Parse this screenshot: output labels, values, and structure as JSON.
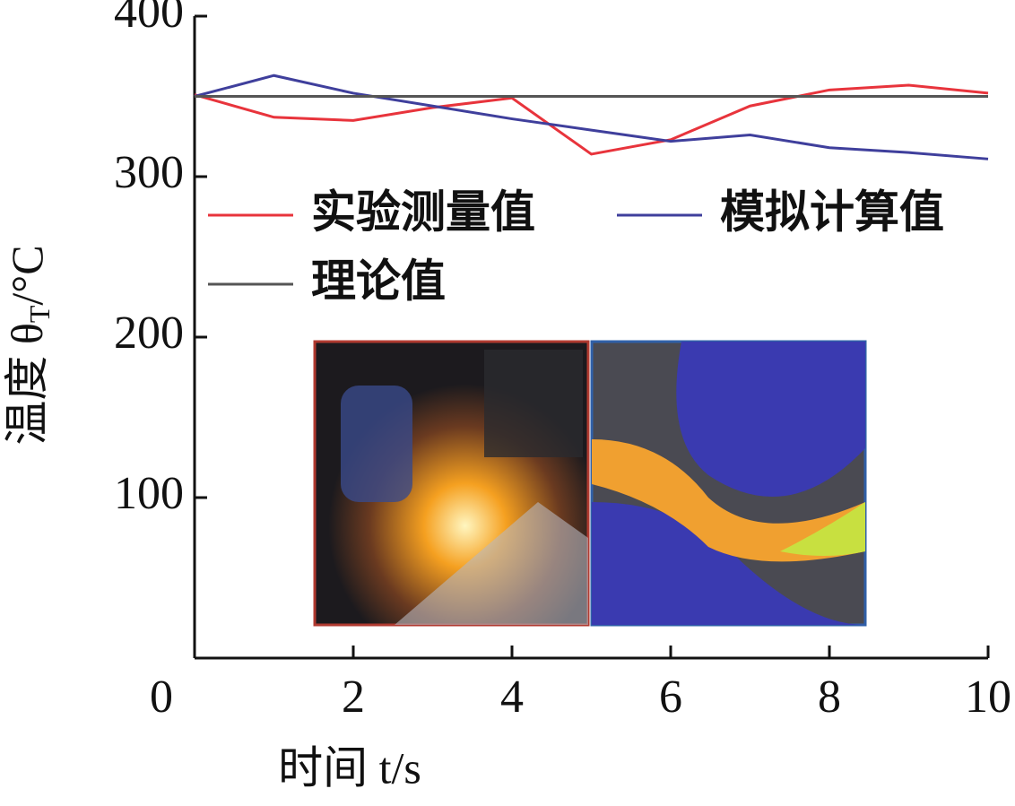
{
  "chart_data": {
    "type": "line",
    "xlabel": "时间 t/s",
    "ylabel": {
      "main": "温度 θ",
      "sub": "T",
      "unit": "/°C"
    },
    "xlim": [
      0,
      10
    ],
    "xticks": [
      0,
      2,
      4,
      6,
      8,
      10
    ],
    "ylim": [
      0,
      400
    ],
    "yticks": [
      100,
      200,
      300,
      400
    ],
    "series": [
      {
        "name": "实验测量值",
        "color": "#e8343c",
        "x": [
          0,
          1,
          2,
          3,
          4,
          5,
          6,
          7,
          8,
          9,
          10
        ],
        "values": [
          351,
          337,
          335,
          343,
          349,
          314,
          323,
          344,
          354,
          357,
          352
        ]
      },
      {
        "name": "模拟计算值",
        "color": "#3f3f9c",
        "x": [
          0,
          1,
          2,
          3,
          4,
          5,
          6,
          7,
          8,
          9,
          10
        ],
        "values": [
          350,
          363,
          352,
          344,
          336,
          329,
          322,
          326,
          318,
          315,
          311
        ]
      },
      {
        "name": "理论值",
        "color": "#555555",
        "x": [
          0,
          10
        ],
        "values": [
          350,
          350
        ]
      }
    ]
  }
}
